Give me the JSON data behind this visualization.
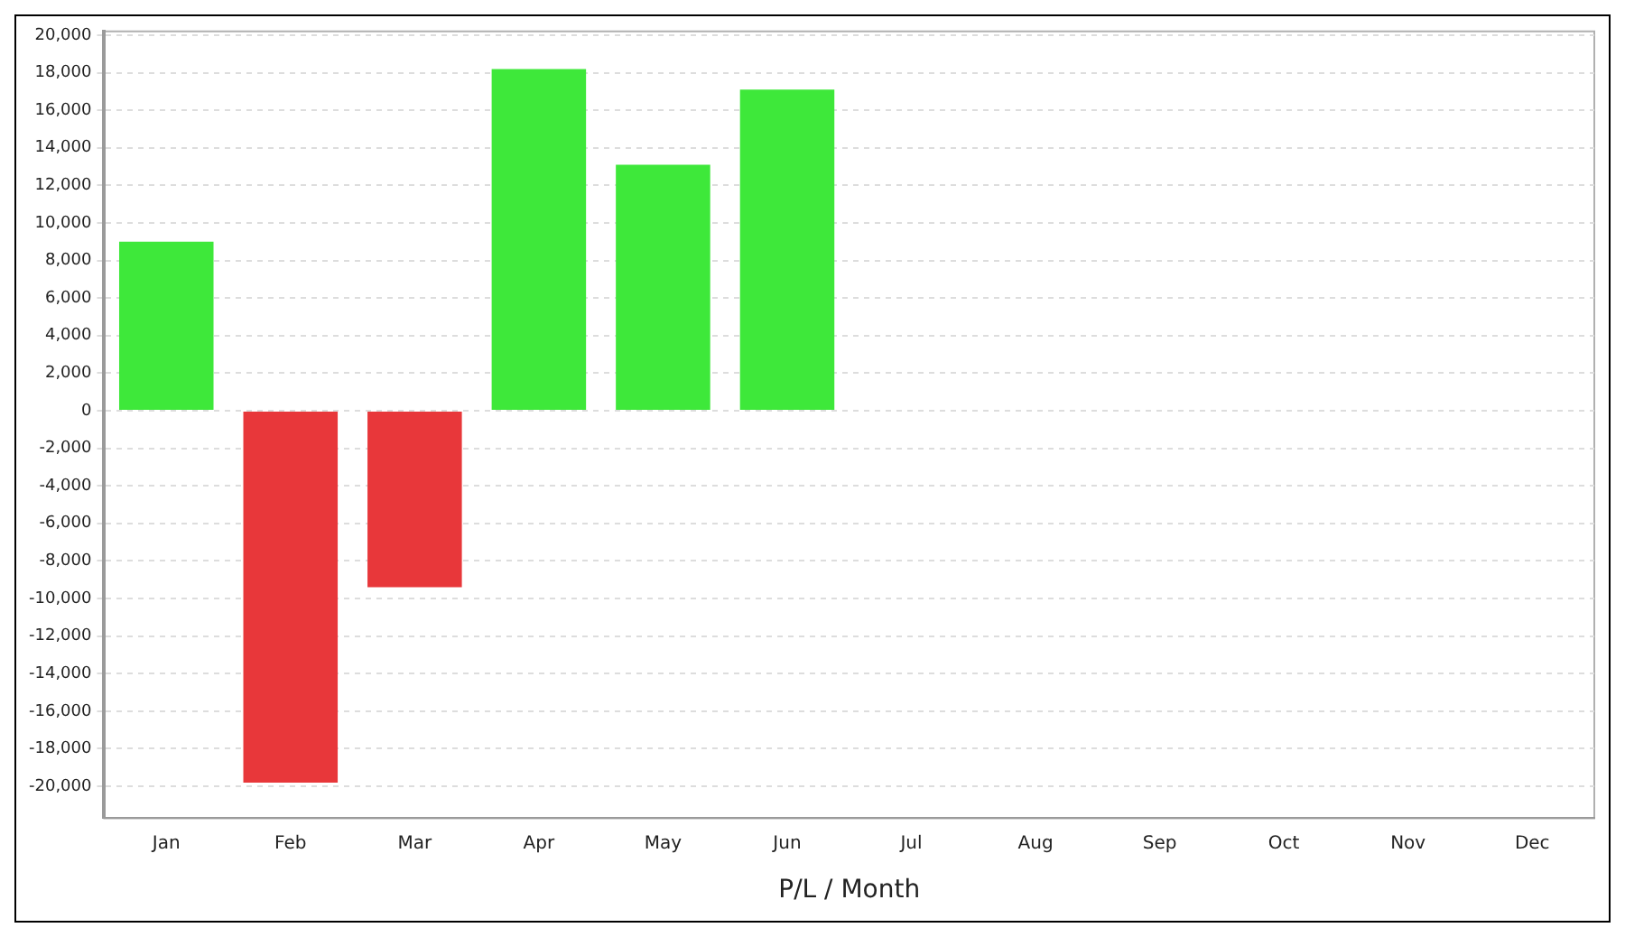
{
  "chart_data": {
    "type": "bar",
    "xlabel": "P/L / Month",
    "categories": [
      "Jan",
      "Feb",
      "Mar",
      "Apr",
      "May",
      "Jun",
      "Jul",
      "Aug",
      "Sep",
      "Oct",
      "Nov",
      "Dec"
    ],
    "values": [
      9000,
      -19800,
      -9400,
      18200,
      13100,
      17100,
      null,
      null,
      null,
      null,
      null,
      null
    ],
    "colors": [
      "#3ee83a",
      "#e8373a",
      "#e8373a",
      "#3ee83a",
      "#3ee83a",
      "#3ee83a",
      "#3ee83a",
      "#3ee83a",
      "#3ee83a",
      "#3ee83a",
      "#3ee83a",
      "#3ee83a"
    ],
    "ylim": [
      -21700,
      20200
    ],
    "yticks": [
      {
        "value": -20000,
        "label": "-20,000"
      },
      {
        "value": -18000,
        "label": "-18,000"
      },
      {
        "value": -16000,
        "label": "-16,000"
      },
      {
        "value": -14000,
        "label": "-14,000"
      },
      {
        "value": -12000,
        "label": "-12,000"
      },
      {
        "value": -10000,
        "label": "-10,000"
      },
      {
        "value": -8000,
        "label": "-8,000"
      },
      {
        "value": -6000,
        "label": "-6,000"
      },
      {
        "value": -4000,
        "label": "-4,000"
      },
      {
        "value": -2000,
        "label": "-2,000"
      },
      0,
      {
        "value": 2000,
        "label": "2,000"
      },
      {
        "value": 4000,
        "label": "4,000"
      },
      {
        "value": 6000,
        "label": "6,000"
      },
      {
        "value": 8000,
        "label": "8,000"
      },
      {
        "value": 10000,
        "label": "10,000"
      },
      {
        "value": 12000,
        "label": "12,000"
      },
      {
        "value": 14000,
        "label": "14,000"
      },
      {
        "value": 16000,
        "label": "16,000"
      },
      {
        "value": 18000,
        "label": "18,000"
      },
      {
        "value": 20000,
        "label": "20,000"
      }
    ],
    "grid": "y",
    "legend": false
  }
}
